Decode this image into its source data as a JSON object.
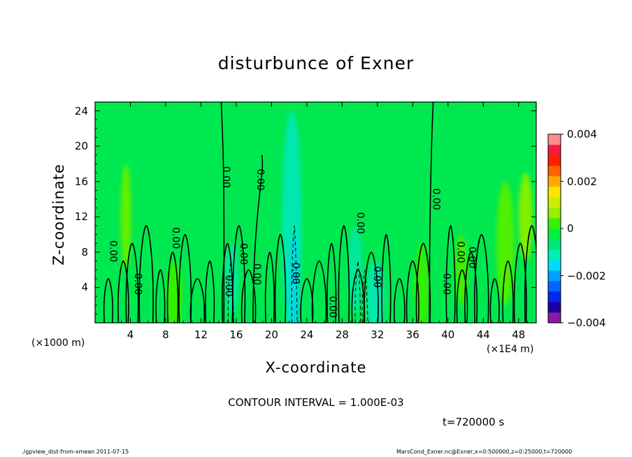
{
  "chart_data": {
    "type": "heatmap",
    "title": "disturbunce of Exner",
    "xlabel": "X-coordinate",
    "ylabel": "Z-coordinate",
    "x_unit_label": "(×1E4 m)",
    "y_unit_label": "(×1000 m)",
    "xlim": [
      0,
      50
    ],
    "ylim": [
      0,
      25
    ],
    "x_ticks": [
      "4",
      "8",
      "12",
      "16",
      "20",
      "24",
      "28",
      "32",
      "36",
      "40",
      "44",
      "48"
    ],
    "y_ticks": [
      "4",
      "8",
      "12",
      "16",
      "20",
      "24"
    ],
    "colorbar": {
      "range": [
        -0.004,
        0.004
      ],
      "tick_labels": [
        "0.004",
        "0.002",
        "0",
        "−0.002",
        "−0.004"
      ],
      "colors": [
        "#8B1AA6",
        "#1E00A0",
        "#0028F0",
        "#0064FF",
        "#00A0FF",
        "#00DCFF",
        "#00F0B4",
        "#00E87A",
        "#00F040",
        "#3CF000",
        "#96F000",
        "#C8F000",
        "#FFE600",
        "#FFAA00",
        "#FF6400",
        "#FF1E00",
        "#F01E3C",
        "#FF8C8C"
      ]
    },
    "contour_interval_text": "CONTOUR INTERVAL = 1.000E-03",
    "contour_labels": [
      {
        "x": 14.5,
        "z": 16.5,
        "text": "0.00"
      },
      {
        "x": 18.4,
        "z": 16.2,
        "text": "0.00"
      },
      {
        "x": 38.3,
        "z": 14.0,
        "text": "0.00"
      },
      {
        "x": 1.7,
        "z": 8.1,
        "text": "0.00"
      },
      {
        "x": 4.5,
        "z": 4.4,
        "text": "0.00"
      },
      {
        "x": 8.8,
        "z": 9.6,
        "text": "0.00"
      },
      {
        "x": 16.5,
        "z": 7.8,
        "text": "0.00"
      },
      {
        "x": 14.8,
        "z": 4.2,
        "text": "0.00"
      },
      {
        "x": 18.0,
        "z": 5.5,
        "text": "0.00"
      },
      {
        "x": 22.4,
        "z": 5.6,
        "text": "0.00"
      },
      {
        "x": 26.6,
        "z": 1.8,
        "text": "0.00"
      },
      {
        "x": 29.7,
        "z": 11.3,
        "text": "0.00"
      },
      {
        "x": 31.6,
        "z": 5.2,
        "text": "0.00"
      },
      {
        "x": 39.5,
        "z": 4.4,
        "text": "0.00"
      },
      {
        "x": 41.1,
        "z": 8.0,
        "text": "0.00"
      },
      {
        "x": 42.4,
        "z": 7.4,
        "text": "0.00"
      }
    ]
  },
  "time_label": "t=720000 s",
  "footer_left": "./gpview_dist-from-xmean  2011-07-15",
  "footer_right": "MarsCond_Exner.nc@Exner,x=0:500000,z=0:25000,t=720000"
}
